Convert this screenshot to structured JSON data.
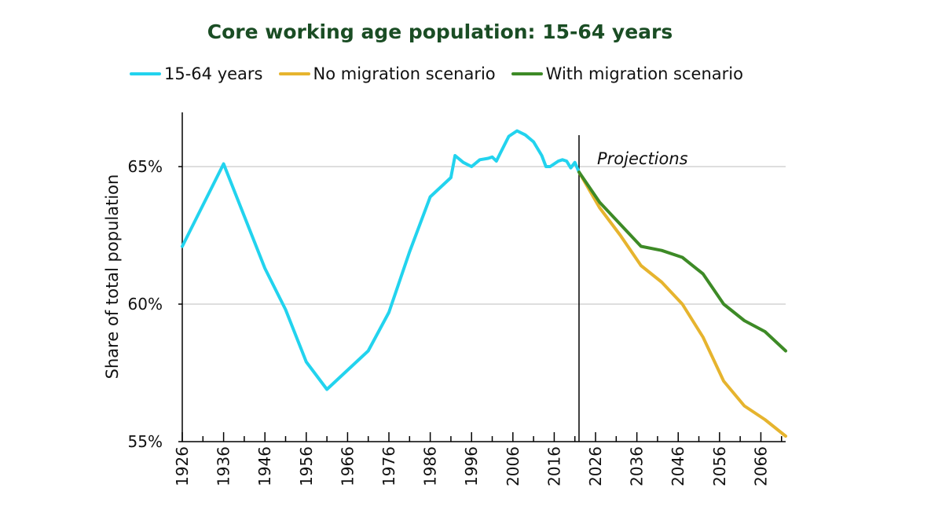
{
  "chart_data": {
    "type": "line",
    "title": "Core working age population: 15-64 years",
    "ylabel": "Share of total population",
    "xlabel": "",
    "xlim": [
      1926,
      2072
    ],
    "ylim": [
      55,
      67
    ],
    "yticks": [
      55,
      60,
      65
    ],
    "ytick_labels": [
      "55%",
      "60%",
      "65%"
    ],
    "xticks": [
      1926,
      1936,
      1946,
      1956,
      1966,
      1976,
      1986,
      1996,
      2006,
      2016,
      2026,
      2036,
      2046,
      2056,
      2066
    ],
    "xtick_labels": [
      "1926",
      "1936",
      "1946",
      "1956",
      "1966",
      "1976",
      "1986",
      "1996",
      "2006",
      "2016",
      "2026",
      "2036",
      "2046",
      "2056",
      "2066"
    ],
    "gridlines_y": [
      60,
      65
    ],
    "projection_start": 2022,
    "annotation": "Projections",
    "legend_position": "top",
    "series": [
      {
        "name": "15-64 years",
        "color": "#22d3ee",
        "points": [
          [
            1926,
            62.1
          ],
          [
            1931,
            63.6
          ],
          [
            1936,
            65.1
          ],
          [
            1941,
            63.2
          ],
          [
            1946,
            61.3
          ],
          [
            1951,
            59.8
          ],
          [
            1956,
            57.9
          ],
          [
            1961,
            56.9
          ],
          [
            1966,
            57.6
          ],
          [
            1971,
            58.3
          ],
          [
            1976,
            59.7
          ],
          [
            1981,
            61.9
          ],
          [
            1986,
            63.9
          ],
          [
            1991,
            64.6
          ],
          [
            1992,
            65.4
          ],
          [
            1994,
            65.15
          ],
          [
            1996,
            65.0
          ],
          [
            1998,
            65.25
          ],
          [
            2000,
            65.3
          ],
          [
            2001,
            65.35
          ],
          [
            2002,
            65.2
          ],
          [
            2003,
            65.5
          ],
          [
            2005,
            66.1
          ],
          [
            2007,
            66.3
          ],
          [
            2009,
            66.15
          ],
          [
            2011,
            65.9
          ],
          [
            2013,
            65.4
          ],
          [
            2014,
            65.0
          ],
          [
            2015,
            65.0
          ],
          [
            2017,
            65.2
          ],
          [
            2018,
            65.25
          ],
          [
            2019,
            65.2
          ],
          [
            2020,
            64.95
          ],
          [
            2021,
            65.15
          ],
          [
            2022,
            64.8
          ]
        ]
      },
      {
        "name": "No migration scenario",
        "color": "#e6b42e",
        "points": [
          [
            2022,
            64.8
          ],
          [
            2027,
            63.5
          ],
          [
            2032,
            62.5
          ],
          [
            2037,
            61.4
          ],
          [
            2042,
            60.8
          ],
          [
            2047,
            60.0
          ],
          [
            2052,
            58.8
          ],
          [
            2057,
            57.2
          ],
          [
            2062,
            56.3
          ],
          [
            2067,
            55.8
          ],
          [
            2072,
            55.2
          ]
        ]
      },
      {
        "name": "With migration scenario",
        "color": "#3d8a26",
        "points": [
          [
            2022,
            64.8
          ],
          [
            2027,
            63.7
          ],
          [
            2032,
            62.9
          ],
          [
            2037,
            62.1
          ],
          [
            2042,
            61.95
          ],
          [
            2047,
            61.7
          ],
          [
            2052,
            61.1
          ],
          [
            2057,
            60.0
          ],
          [
            2062,
            59.4
          ],
          [
            2067,
            59.0
          ],
          [
            2072,
            58.3
          ]
        ]
      }
    ]
  }
}
